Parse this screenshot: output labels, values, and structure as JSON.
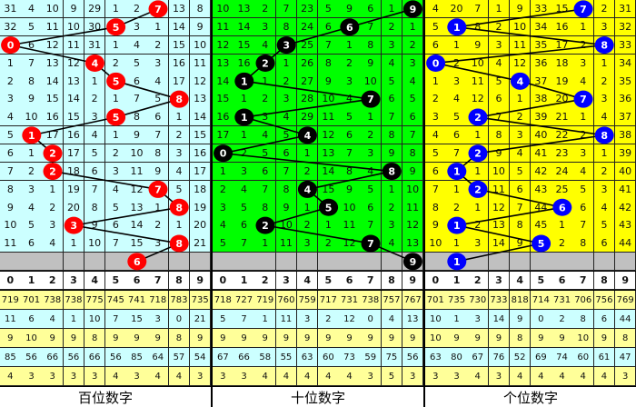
{
  "chart_data": {
    "type": "table",
    "title": "",
    "colors": {
      "hundreds_bg": "#ccffff",
      "tens_bg": "#00ff00",
      "units_bg": "#ffff00",
      "hundreds_ball": "#ff0000",
      "tens_ball": "#000000",
      "units_ball": "#0000ff",
      "stat_yellow": "#ffff99",
      "stat_cyan": "#ccffff",
      "gray_row": "#c0c0c0"
    },
    "column_headers": [
      "0",
      "1",
      "2",
      "3",
      "4",
      "5",
      "6",
      "7",
      "8",
      "9"
    ],
    "panels": [
      {
        "label": "百位数字",
        "rows": [
          [
            31,
            4,
            10,
            9,
            29,
            1,
            2,
            7,
            13,
            8
          ],
          [
            32,
            5,
            11,
            10,
            30,
            5,
            3,
            1,
            14,
            9
          ],
          [
            0,
            6,
            12,
            11,
            31,
            1,
            4,
            2,
            15,
            10
          ],
          [
            1,
            7,
            13,
            12,
            4,
            2,
            5,
            3,
            16,
            11
          ],
          [
            2,
            8,
            14,
            13,
            1,
            5,
            6,
            4,
            17,
            12
          ],
          [
            3,
            9,
            15,
            14,
            2,
            1,
            7,
            5,
            8,
            13
          ],
          [
            4,
            10,
            16,
            15,
            3,
            5,
            8,
            6,
            1,
            14
          ],
          [
            5,
            1,
            17,
            16,
            4,
            1,
            9,
            7,
            2,
            15
          ],
          [
            6,
            1,
            2,
            17,
            5,
            2,
            10,
            8,
            3,
            16
          ],
          [
            7,
            2,
            2,
            18,
            6,
            3,
            11,
            9,
            4,
            17
          ],
          [
            8,
            3,
            1,
            19,
            7,
            4,
            12,
            7,
            5,
            18
          ],
          [
            9,
            4,
            2,
            20,
            8,
            5,
            13,
            1,
            8,
            19
          ],
          [
            10,
            5,
            3,
            3,
            9,
            6,
            14,
            2,
            1,
            20
          ],
          [
            11,
            6,
            4,
            1,
            10,
            7,
            15,
            3,
            8,
            21
          ]
        ],
        "draws": [
          7,
          5,
          0,
          4,
          5,
          8,
          5,
          1,
          2,
          2,
          7,
          8,
          3,
          8
        ],
        "next": 6,
        "stats": [
          [
            719,
            701,
            738,
            738,
            775,
            745,
            741,
            718,
            783,
            735
          ],
          [
            11,
            6,
            4,
            1,
            10,
            7,
            15,
            3,
            0,
            21
          ],
          [
            9,
            10,
            9,
            9,
            8,
            9,
            9,
            9,
            8,
            9
          ],
          [
            85,
            56,
            66,
            56,
            66,
            56,
            85,
            64,
            57,
            54
          ],
          [
            4,
            3,
            3,
            3,
            3,
            4,
            3,
            4,
            4,
            3
          ]
        ]
      },
      {
        "label": "十位数字",
        "rows": [
          [
            10,
            13,
            2,
            7,
            23,
            5,
            9,
            6,
            1,
            9
          ],
          [
            11,
            14,
            3,
            8,
            24,
            6,
            6,
            7,
            2,
            1
          ],
          [
            12,
            15,
            4,
            3,
            25,
            7,
            1,
            8,
            3,
            2
          ],
          [
            13,
            16,
            2,
            1,
            26,
            8,
            2,
            9,
            4,
            3
          ],
          [
            14,
            1,
            1,
            2,
            27,
            9,
            3,
            10,
            5,
            4
          ],
          [
            15,
            1,
            2,
            3,
            28,
            10,
            4,
            7,
            6,
            5
          ],
          [
            16,
            1,
            3,
            4,
            29,
            11,
            5,
            1,
            7,
            6
          ],
          [
            17,
            1,
            4,
            5,
            4,
            12,
            6,
            2,
            8,
            7
          ],
          [
            0,
            2,
            5,
            6,
            1,
            13,
            7,
            3,
            9,
            8
          ],
          [
            1,
            3,
            6,
            7,
            2,
            14,
            8,
            4,
            8,
            9
          ],
          [
            2,
            4,
            7,
            8,
            4,
            15,
            9,
            5,
            1,
            10
          ],
          [
            3,
            5,
            8,
            9,
            1,
            5,
            10,
            6,
            2,
            11
          ],
          [
            4,
            6,
            2,
            10,
            2,
            1,
            11,
            7,
            3,
            12
          ],
          [
            5,
            7,
            1,
            11,
            3,
            2,
            12,
            7,
            4,
            13
          ]
        ],
        "draws": [
          9,
          6,
          3,
          2,
          1,
          7,
          1,
          4,
          0,
          8,
          4,
          5,
          2,
          7
        ],
        "next": 9,
        "stats": [
          [
            718,
            727,
            719,
            760,
            759,
            717,
            731,
            738,
            757,
            767
          ],
          [
            5,
            7,
            1,
            11,
            3,
            2,
            12,
            0,
            4,
            13
          ],
          [
            9,
            9,
            9,
            9,
            9,
            9,
            9,
            9,
            9,
            9
          ],
          [
            67,
            66,
            58,
            55,
            63,
            60,
            73,
            59,
            75,
            56
          ],
          [
            3,
            3,
            4,
            4,
            4,
            4,
            4,
            3,
            5,
            3
          ]
        ]
      },
      {
        "label": "个位数字",
        "rows": [
          [
            4,
            20,
            7,
            1,
            9,
            33,
            15,
            7,
            2,
            31
          ],
          [
            5,
            1,
            8,
            2,
            10,
            34,
            16,
            1,
            3,
            32
          ],
          [
            6,
            1,
            9,
            3,
            11,
            35,
            17,
            2,
            8,
            33
          ],
          [
            0,
            2,
            10,
            4,
            12,
            36,
            18,
            3,
            1,
            34
          ],
          [
            1,
            3,
            11,
            5,
            4,
            37,
            19,
            4,
            2,
            35
          ],
          [
            2,
            4,
            12,
            6,
            1,
            38,
            20,
            7,
            3,
            36
          ],
          [
            3,
            5,
            2,
            7,
            2,
            39,
            21,
            1,
            4,
            37
          ],
          [
            4,
            6,
            1,
            8,
            3,
            40,
            22,
            2,
            8,
            38
          ],
          [
            5,
            7,
            2,
            9,
            4,
            41,
            23,
            3,
            1,
            39
          ],
          [
            6,
            1,
            1,
            10,
            5,
            42,
            24,
            4,
            2,
            40
          ],
          [
            7,
            1,
            2,
            11,
            6,
            43,
            25,
            5,
            3,
            41
          ],
          [
            8,
            2,
            1,
            12,
            7,
            44,
            6,
            6,
            4,
            42
          ],
          [
            9,
            1,
            2,
            13,
            8,
            45,
            1,
            7,
            5,
            43
          ],
          [
            10,
            1,
            3,
            14,
            9,
            5,
            2,
            8,
            6,
            44
          ]
        ],
        "draws": [
          7,
          1,
          8,
          0,
          4,
          7,
          2,
          8,
          2,
          1,
          2,
          6,
          1,
          5
        ],
        "next": 1,
        "stats": [
          [
            701,
            735,
            730,
            733,
            818,
            714,
            731,
            706,
            756,
            769
          ],
          [
            10,
            1,
            3,
            14,
            9,
            0,
            2,
            8,
            6,
            44
          ],
          [
            10,
            9,
            9,
            9,
            8,
            9,
            9,
            10,
            9,
            8
          ],
          [
            63,
            80,
            67,
            76,
            52,
            69,
            74,
            60,
            61,
            47
          ],
          [
            3,
            3,
            4,
            3,
            4,
            4,
            4,
            4,
            4,
            3
          ]
        ]
      }
    ]
  }
}
